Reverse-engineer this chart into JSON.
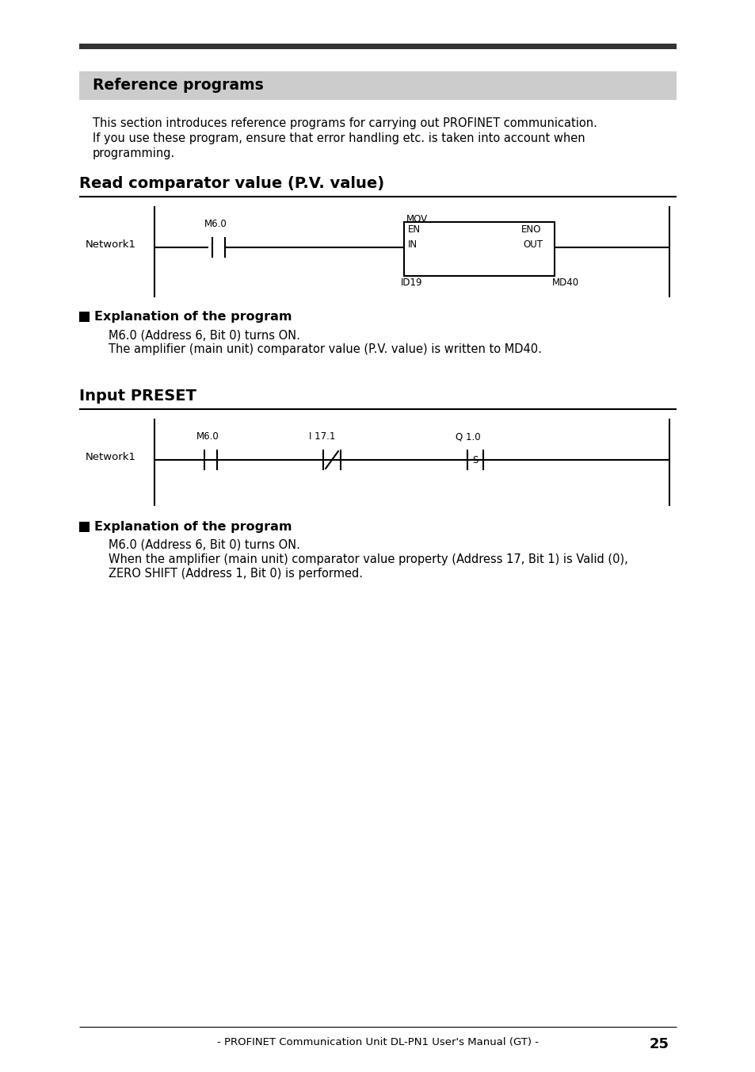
{
  "top_bar_color": "#333333",
  "header_bg_color": "#cccccc",
  "section1_title": "Reference programs",
  "intro_text_line1": "This section introduces reference programs for carrying out PROFINET communication.",
  "intro_text_line2": "If you use these program, ensure that error handling etc. is taken into account when",
  "intro_text_line3": "programming.",
  "section2_title": "Read comparator value (P.V. value)",
  "section3_title": "Input PRESET",
  "explanation_title": "Explanation of the program",
  "expl1_line1": "M6.0 (Address 6, Bit 0) turns ON.",
  "expl1_line2": "The amplifier (main unit) comparator value (P.V. value) is written to MD40.",
  "expl2_line1": "M6.0 (Address 6, Bit 0) turns ON.",
  "expl2_line2": "When the amplifier (main unit) comparator value property (Address 17, Bit 1) is Valid (0),",
  "expl2_line3": "ZERO SHIFT (Address 1, Bit 0) is performed.",
  "footer_text": "- PROFINET Communication Unit DL-PN1 User's Manual (GT) -",
  "footer_page": "25",
  "background_color": "#ffffff"
}
